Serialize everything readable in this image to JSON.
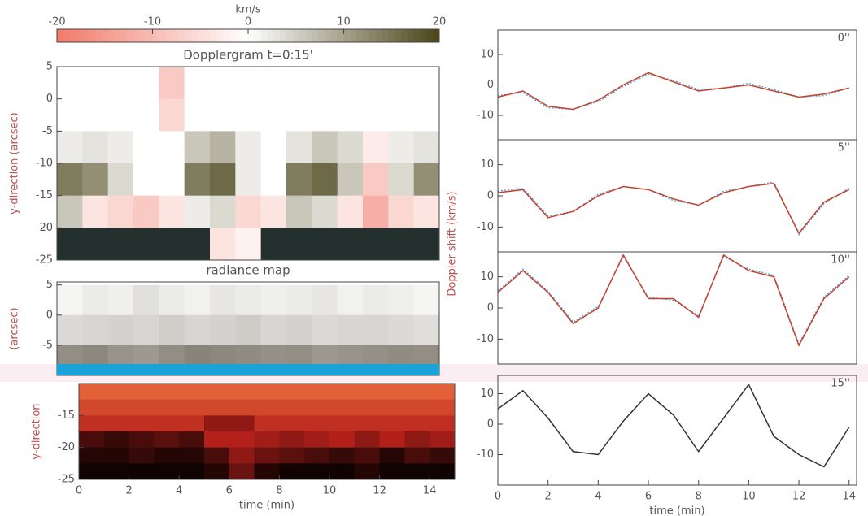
{
  "chart_data": [
    {
      "type": "heatmap",
      "title": "Dopplergram t=0:15'",
      "ylabel": "y-direction (arcsec)",
      "x": [
        0.5,
        1.5,
        2.5,
        3.5,
        4.5,
        5.5,
        6.5,
        7.5,
        8.5,
        9.5,
        10.5,
        11.5,
        12.5,
        13.5,
        14.5
      ],
      "y": [
        2.5,
        -2.5,
        -7.5,
        -12.5,
        -17.5,
        -22.5
      ],
      "z": [
        [
          0,
          0,
          0,
          0,
          -8,
          0,
          0,
          0,
          0,
          0,
          0,
          0,
          0,
          0,
          0
        ],
        [
          0,
          0,
          0,
          0,
          -6,
          0,
          0,
          0,
          0,
          0,
          0,
          0,
          0,
          0,
          0
        ],
        [
          2,
          3,
          2,
          0,
          0,
          6,
          8,
          2,
          0,
          3,
          6,
          4,
          -3,
          2,
          3
        ],
        [
          14,
          12,
          4,
          0,
          0,
          14,
          16,
          2,
          0,
          14,
          16,
          6,
          -8,
          4,
          12
        ],
        [
          6,
          -4,
          -6,
          -8,
          -4,
          2,
          4,
          -6,
          -4,
          6,
          4,
          -4,
          -12,
          -6,
          -4
        ],
        [
          null,
          null,
          null,
          null,
          null,
          null,
          -4,
          -2,
          null,
          null,
          null,
          null,
          null,
          null,
          null
        ]
      ],
      "xlim": [
        0,
        15
      ],
      "ylim": [
        -25,
        5
      ],
      "yticks": [
        5,
        0,
        -5,
        -10,
        -15,
        -20,
        -25
      ],
      "clim": [
        -20,
        20
      ],
      "colors": [
        "#f07a6a",
        "#ffffff",
        "#4a4419"
      ],
      "null_color": "#23302e",
      "colorbar": {
        "label": "km/s",
        "ticks": [
          -20,
          -10,
          0,
          10,
          20
        ]
      }
    },
    {
      "type": "heatmap",
      "title": "radiance map",
      "ylabel": "(arcsec)",
      "x": [
        0.5,
        1.5,
        2.5,
        3.5,
        4.5,
        5.5,
        6.5,
        7.5,
        8.5,
        9.5,
        10.5,
        11.5,
        12.5,
        13.5,
        14.5
      ],
      "y": [
        2.5,
        -2.5,
        -7.5
      ],
      "z": [
        [
          0.95,
          0.9,
          0.92,
          0.85,
          0.9,
          0.93,
          0.88,
          0.9,
          0.92,
          0.9,
          0.88,
          0.93,
          0.9,
          0.92,
          0.95
        ],
        [
          0.82,
          0.8,
          0.78,
          0.8,
          0.76,
          0.8,
          0.78,
          0.75,
          0.8,
          0.78,
          0.82,
          0.8,
          0.8,
          0.82,
          0.84
        ],
        [
          0.45,
          0.42,
          0.48,
          0.5,
          0.45,
          0.4,
          0.42,
          0.44,
          0.46,
          0.45,
          0.5,
          0.48,
          0.46,
          0.44,
          0.45
        ]
      ],
      "xlim": [
        0,
        15
      ],
      "ylim": [
        -10,
        5.5
      ],
      "yticks": [
        5,
        0,
        -5
      ],
      "clim": [
        0,
        1
      ],
      "colors": [
        "#3a3220",
        "#ffffff"
      ]
    },
    {
      "type": "heatmap",
      "ylabel": "y-direction",
      "xlabel": "time (min)",
      "x": [
        0.5,
        1.5,
        2.5,
        3.5,
        4.5,
        5.5,
        6.5,
        7.5,
        8.5,
        9.5,
        10.5,
        11.5,
        12.5,
        13.5,
        14.5
      ],
      "y": [
        -11.25,
        -13.75,
        -16.25,
        -18.75,
        -21.25,
        -23.75
      ],
      "z": [
        [
          0.9,
          0.9,
          0.9,
          0.9,
          0.9,
          0.9,
          0.9,
          0.9,
          0.9,
          0.9,
          0.9,
          0.9,
          0.9,
          0.9,
          0.9
        ],
        [
          0.75,
          0.75,
          0.75,
          0.75,
          0.75,
          0.75,
          0.75,
          0.75,
          0.75,
          0.75,
          0.75,
          0.75,
          0.75,
          0.75,
          0.75
        ],
        [
          0.6,
          0.6,
          0.6,
          0.6,
          0.6,
          0.4,
          0.4,
          0.6,
          0.6,
          0.6,
          0.6,
          0.6,
          0.6,
          0.6,
          0.6
        ],
        [
          0.2,
          0.15,
          0.2,
          0.25,
          0.2,
          0.5,
          0.5,
          0.45,
          0.4,
          0.45,
          0.5,
          0.4,
          0.5,
          0.4,
          0.45
        ],
        [
          0.1,
          0.1,
          0.15,
          0.1,
          0.1,
          0.2,
          0.4,
          0.3,
          0.25,
          0.2,
          0.15,
          0.2,
          0.1,
          0.2,
          0.15
        ],
        [
          0.05,
          0.05,
          0.05,
          0.05,
          0.05,
          0.1,
          0.3,
          0.1,
          0.05,
          0.05,
          0.05,
          0.1,
          0.05,
          0.05,
          0.05
        ]
      ],
      "xlim": [
        0,
        15
      ],
      "ylim": [
        -25,
        -10
      ],
      "yticks": [
        -15,
        -20,
        -25
      ],
      "xticks": [
        0,
        2,
        4,
        6,
        8,
        10,
        12,
        14
      ],
      "clim": [
        0,
        1
      ],
      "colors": [
        "#000000",
        "#b3201a",
        "#f07040"
      ]
    },
    {
      "type": "line",
      "label": "0''",
      "x": [
        0,
        1,
        2,
        3,
        4,
        5,
        6,
        7,
        8,
        9,
        10,
        11,
        12,
        13,
        14
      ],
      "series": [
        {
          "color": "#3aa0d8",
          "values": [
            -3.5,
            -2.5,
            -7.5,
            -8,
            -5.5,
            -0.5,
            3.5,
            1.5,
            -1.5,
            -1,
            0.5,
            -1.5,
            -4,
            -3.5,
            -1
          ]
        },
        {
          "color": "#c8402a",
          "values": [
            -4,
            -2,
            -7,
            -8,
            -5,
            0,
            4,
            1,
            -2,
            -1,
            0,
            -2,
            -4,
            -3,
            -1
          ]
        }
      ],
      "xlim": [
        0,
        14.3
      ],
      "ylim": [
        -18,
        18
      ],
      "yticks": [
        10,
        0,
        -10
      ]
    },
    {
      "type": "line",
      "label": "5''",
      "x": [
        0,
        1,
        2,
        3,
        4,
        5,
        6,
        7,
        8,
        9,
        10,
        11,
        12,
        13,
        14
      ],
      "series": [
        {
          "color": "#3aa0d8",
          "values": [
            1.5,
            2.5,
            -6.5,
            -5,
            0.5,
            3,
            2,
            -1.5,
            -3,
            1.5,
            3,
            4.5,
            -12.5,
            -2.5,
            2.5
          ]
        },
        {
          "color": "#c8402a",
          "values": [
            1,
            2,
            -7,
            -5,
            0,
            3,
            2,
            -1,
            -3,
            1,
            3,
            4,
            -12,
            -2,
            2
          ]
        }
      ],
      "xlim": [
        0,
        14.3
      ],
      "ylim": [
        -18,
        18
      ],
      "yticks": [
        10,
        0,
        -10
      ]
    },
    {
      "type": "line",
      "label": "10''",
      "ylabel": "Doppler shift (km/s)",
      "x": [
        0,
        1,
        2,
        3,
        4,
        5,
        6,
        7,
        8,
        9,
        10,
        11,
        12,
        13,
        14
      ],
      "series": [
        {
          "color": "#3aa0d8",
          "values": [
            5.5,
            12.5,
            5.5,
            -4.5,
            0.5,
            16.5,
            3.5,
            2.5,
            -2.5,
            16.5,
            12.5,
            10.5,
            -11.5,
            3.5,
            10.5
          ]
        },
        {
          "color": "#c8402a",
          "values": [
            5,
            12,
            5,
            -5,
            0,
            17,
            3,
            3,
            -3,
            17,
            12,
            10,
            -12,
            3,
            10
          ]
        }
      ],
      "xlim": [
        0,
        14.3
      ],
      "ylim": [
        -18,
        18
      ],
      "yticks": [
        10,
        0,
        -10
      ]
    },
    {
      "type": "line",
      "label": "15''",
      "xlabel": "time (min)",
      "x": [
        0,
        1,
        2,
        3,
        4,
        5,
        6,
        7,
        8,
        9,
        10,
        11,
        12,
        13,
        14
      ],
      "series": [
        {
          "color": "#333333",
          "values": [
            5,
            11,
            2,
            -9,
            -10,
            1,
            10,
            3,
            -9,
            2,
            13,
            -4,
            -10,
            -14,
            -1
          ]
        }
      ],
      "xlim": [
        0,
        14.3
      ],
      "ylim": [
        -20,
        16
      ],
      "yticks": [
        10,
        0,
        -10
      ],
      "xticks": [
        0,
        2,
        4,
        6,
        8,
        10,
        12,
        14
      ]
    }
  ]
}
